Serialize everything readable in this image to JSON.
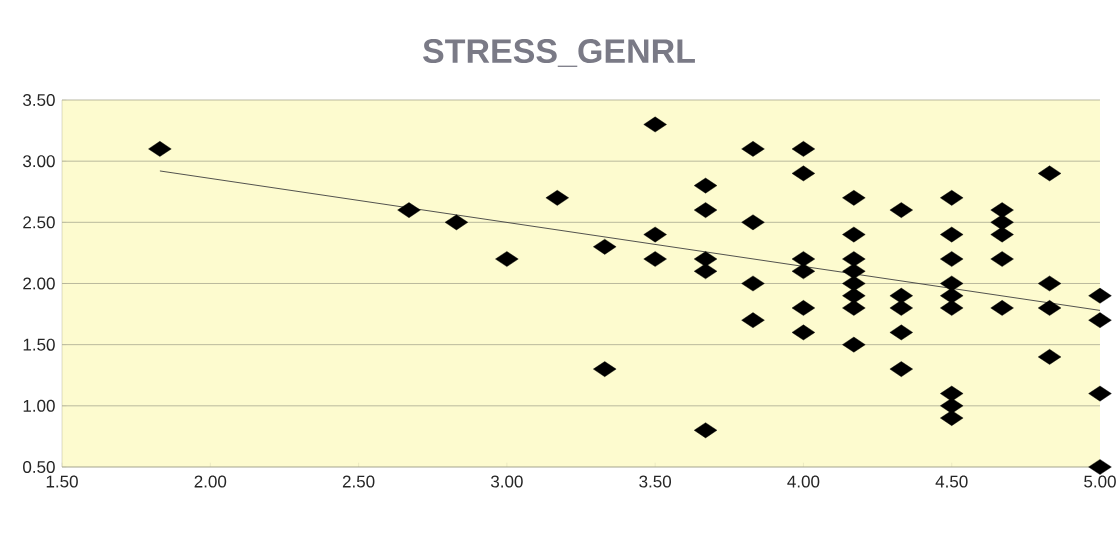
{
  "chart_data": {
    "type": "scatter",
    "title": "STRESS_GENRL",
    "series": [
      {
        "color": "#000000",
        "marker": "diamond",
        "x": [
          1.83,
          2.67,
          2.83,
          3.0,
          3.17,
          3.33,
          3.33,
          3.5,
          3.5,
          3.5,
          3.67,
          3.67,
          3.67,
          3.67,
          3.67,
          3.83,
          3.83,
          3.83,
          3.83,
          4.0,
          4.0,
          4.0,
          4.0,
          4.0,
          4.0,
          4.17,
          4.17,
          4.17,
          4.17,
          4.17,
          4.17,
          4.17,
          4.17,
          4.33,
          4.33,
          4.33,
          4.33,
          4.33,
          4.5,
          4.5,
          4.5,
          4.5,
          4.5,
          4.5,
          4.5,
          4.5,
          4.5,
          4.67,
          4.67,
          4.67,
          4.67,
          4.67,
          4.83,
          4.83,
          4.83,
          4.83,
          5.0,
          5.0,
          5.0,
          5.0
        ],
        "values": [
          3.1,
          2.6,
          2.5,
          2.2,
          2.7,
          2.3,
          1.3,
          3.3,
          2.4,
          2.2,
          2.8,
          2.6,
          2.2,
          2.1,
          0.8,
          3.1,
          2.5,
          2.0,
          1.7,
          3.1,
          2.9,
          2.2,
          2.1,
          1.8,
          1.6,
          2.7,
          2.4,
          2.2,
          2.1,
          2.0,
          1.9,
          1.8,
          1.5,
          2.6,
          1.9,
          1.8,
          1.6,
          1.3,
          2.7,
          2.4,
          2.2,
          2.0,
          1.9,
          1.8,
          1.1,
          1.0,
          0.9,
          2.6,
          2.5,
          2.4,
          2.2,
          1.8,
          2.9,
          2.0,
          1.8,
          1.4,
          1.9,
          1.7,
          1.1,
          0.5
        ]
      },
      {
        "type": "line",
        "color": "#404040",
        "marker": "none",
        "x": [
          1.83,
          5.0
        ],
        "values": [
          2.92,
          1.78
        ]
      }
    ],
    "xlim": [
      1.5,
      5.0
    ],
    "xticks": [
      {
        "value": 1.5,
        "label": "1.50"
      },
      {
        "value": 2.0,
        "label": "2.00"
      },
      {
        "value": 2.5,
        "label": "2.50"
      },
      {
        "value": 3.0,
        "label": "3.00"
      },
      {
        "value": 3.5,
        "label": "3.50"
      },
      {
        "value": 4.0,
        "label": "4.00"
      },
      {
        "value": 4.5,
        "label": "4.50"
      },
      {
        "value": 5.0,
        "label": "5.00"
      }
    ],
    "ylim": [
      0.5,
      3.5
    ],
    "yticks": [
      {
        "value": 0.5,
        "label": "0.50"
      },
      {
        "value": 1.0,
        "label": "1.00"
      },
      {
        "value": 1.5,
        "label": "1.50"
      },
      {
        "value": 2.0,
        "label": "2.00"
      },
      {
        "value": 2.5,
        "label": "2.50"
      },
      {
        "value": 3.0,
        "label": "3.00"
      },
      {
        "value": 3.5,
        "label": "3.50"
      }
    ],
    "grid": "y"
  }
}
